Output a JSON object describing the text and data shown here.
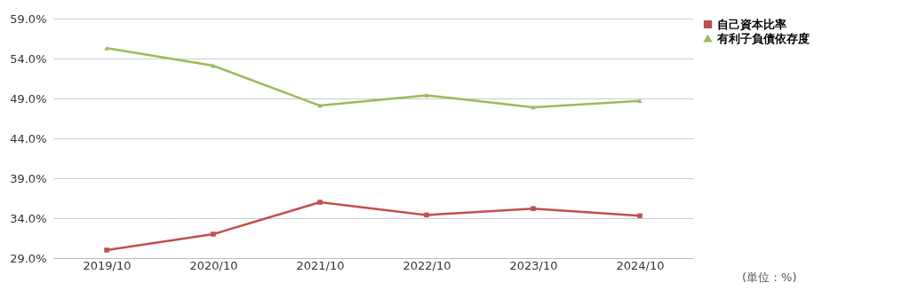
{
  "chart_data": {
    "type": "line",
    "categories": [
      "2019/10",
      "2020/10",
      "2021/10",
      "2022/10",
      "2023/10",
      "2024/10"
    ],
    "series": [
      {
        "name": "自己資本比率",
        "color": "#c0504d",
        "marker": "square",
        "values": [
          30.0,
          32.0,
          36.0,
          34.4,
          35.2,
          34.3
        ]
      },
      {
        "name": "有利子負債依存度",
        "color": "#9bbb59",
        "marker": "triangle",
        "values": [
          55.3,
          53.1,
          48.1,
          49.4,
          47.9,
          48.7
        ]
      }
    ],
    "ylim": [
      29.0,
      59.0
    ],
    "yticks": [
      {
        "value": 29.0,
        "label": "29.0%"
      },
      {
        "value": 34.0,
        "label": "34.0%"
      },
      {
        "value": 39.0,
        "label": "39.0%"
      },
      {
        "value": 44.0,
        "label": "44.0%"
      },
      {
        "value": 49.0,
        "label": "49.0%"
      },
      {
        "value": 54.0,
        "label": "54.0%"
      },
      {
        "value": 59.0,
        "label": "59.0%"
      }
    ],
    "grid": "y",
    "legend": "right",
    "line_style": "solid",
    "annotations": [
      "(単位：%)"
    ]
  }
}
